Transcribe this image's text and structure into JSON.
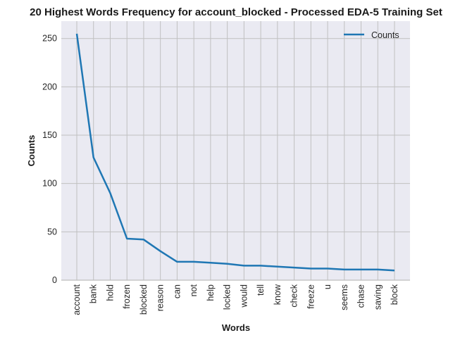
{
  "chart_data": {
    "type": "line",
    "title": "20 Highest Words Frequency for account_blocked - Processed EDA-5 Training Set",
    "xlabel": "Words",
    "ylabel": "Counts",
    "categories": [
      "account",
      "bank",
      "hold",
      "frozen",
      "blocked",
      "reason",
      "can",
      "not",
      "help",
      "locked",
      "would",
      "tell",
      "know",
      "check",
      "freeze",
      "u",
      "seems",
      "chase",
      "saving",
      "block"
    ],
    "series": [
      {
        "name": "Counts",
        "values": [
          255,
          127,
          90,
          43,
          42,
          30,
          19,
          19,
          18,
          17,
          15,
          15,
          14,
          13,
          12,
          12,
          11,
          11,
          11,
          10
        ]
      }
    ],
    "ylim": [
      0,
      268
    ],
    "yticks": [
      0,
      50,
      100,
      150,
      200,
      250
    ],
    "grid": true,
    "legend_position": "top-right",
    "colors": {
      "line": "#1f77b4",
      "background": "#eaeaf2",
      "grid": "#c0c0c0"
    }
  }
}
